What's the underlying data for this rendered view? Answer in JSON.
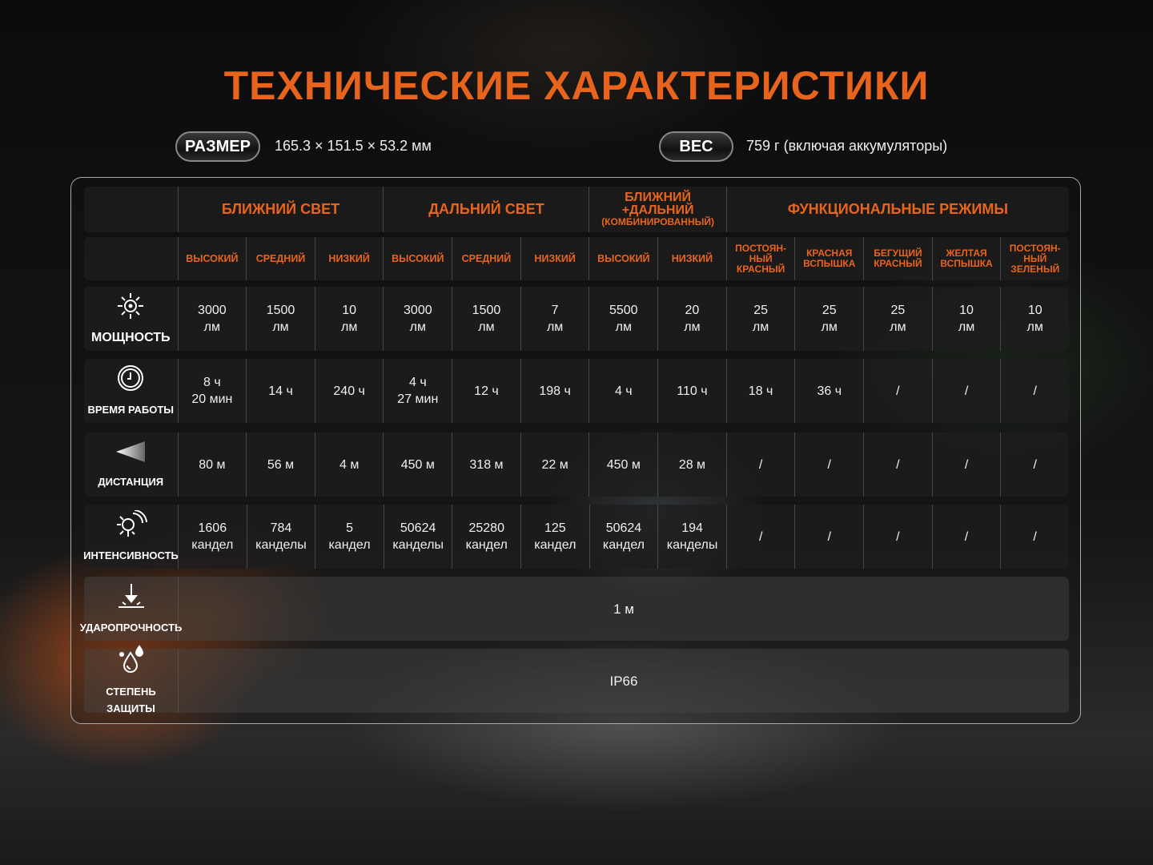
{
  "title": "ТЕХНИЧЕСКИЕ ХАРАКТЕРИСТИКИ",
  "size": {
    "label": "РАЗМЕР",
    "value": "165.3 × 151.5 × 53.2 мм"
  },
  "weight": {
    "label": "ВЕС",
    "value": "759 г (включая аккумуляторы)"
  },
  "colors": {
    "accent": "#e8641c"
  },
  "groups": [
    {
      "label": "БЛИЖНИЙ СВЕТ",
      "span": 3
    },
    {
      "label": "ДАЛЬНИЙ СВЕТ",
      "span": 3
    },
    {
      "label": "БЛИЖНИЙ +ДАЛЬНИЙ",
      "sub": "(КОМБИНИРОВАННЫЙ)",
      "span": 2
    },
    {
      "label": "ФУНКЦИОНАЛЬНЫЕ РЕЖИМЫ",
      "span": 5
    }
  ],
  "modes": [
    "ВЫСОКИЙ",
    "СРЕДНИЙ",
    "НИЗКИЙ",
    "ВЫСОКИЙ",
    "СРЕДНИЙ",
    "НИЗКИЙ",
    "ВЫСОКИЙ",
    "НИЗКИЙ",
    "ПОСТОЯН-\nНЫЙ\nКРАСНЫЙ",
    "КРАСНАЯ\nВСПЫШКА",
    "БЕГУЩИЙ\nКРАСНЫЙ",
    "ЖЕЛТАЯ\nВСПЫШКА",
    "ПОСТОЯН-\nНЫЙ\nЗЕЛЕНЫЙ"
  ],
  "rows": [
    {
      "label": "МОЩНОСТЬ",
      "icon": "sun-icon",
      "values": [
        "3000\nлм",
        "1500\nлм",
        "10\nлм",
        "3000\nлм",
        "1500\nлм",
        "7\nлм",
        "5500\nлм",
        "20\nлм",
        "25\nлм",
        "25\nлм",
        "25\nлм",
        "10\nлм",
        "10\nлм"
      ]
    },
    {
      "label": "ВРЕМЯ РАБОТЫ",
      "icon": "clock-icon",
      "values": [
        "8 ч\n20 мин",
        "14 ч",
        "240 ч",
        "4 ч\n27 мин",
        "12 ч",
        "198 ч",
        "4 ч",
        "110 ч",
        "18 ч",
        "36 ч",
        "/",
        "/",
        "/"
      ]
    },
    {
      "label": "ДИСТАНЦИЯ",
      "icon": "beam-icon",
      "values": [
        "80 м",
        "56 м",
        "4 м",
        "450 м",
        "318 м",
        "22 м",
        "450 м",
        "28 м",
        "/",
        "/",
        "/",
        "/",
        "/"
      ]
    },
    {
      "label": "ИНТЕНСИВНОСТЬ",
      "icon": "intensity-icon",
      "values": [
        "1606\nкандел",
        "784\nканделы",
        "5\nкандел",
        "50624\nканделы",
        "25280\nкандел",
        "125\nкандел",
        "50624\nкандел",
        "194\nканделы",
        "/",
        "/",
        "/",
        "/",
        "/"
      ]
    },
    {
      "label": "УДАРОПРОЧНОСТЬ",
      "icon": "impact-icon",
      "span_value": "1 м"
    },
    {
      "label": "СТЕПЕНЬ ЗАЩИТЫ",
      "icon": "water-drops-icon",
      "span_value": "IP66"
    }
  ]
}
